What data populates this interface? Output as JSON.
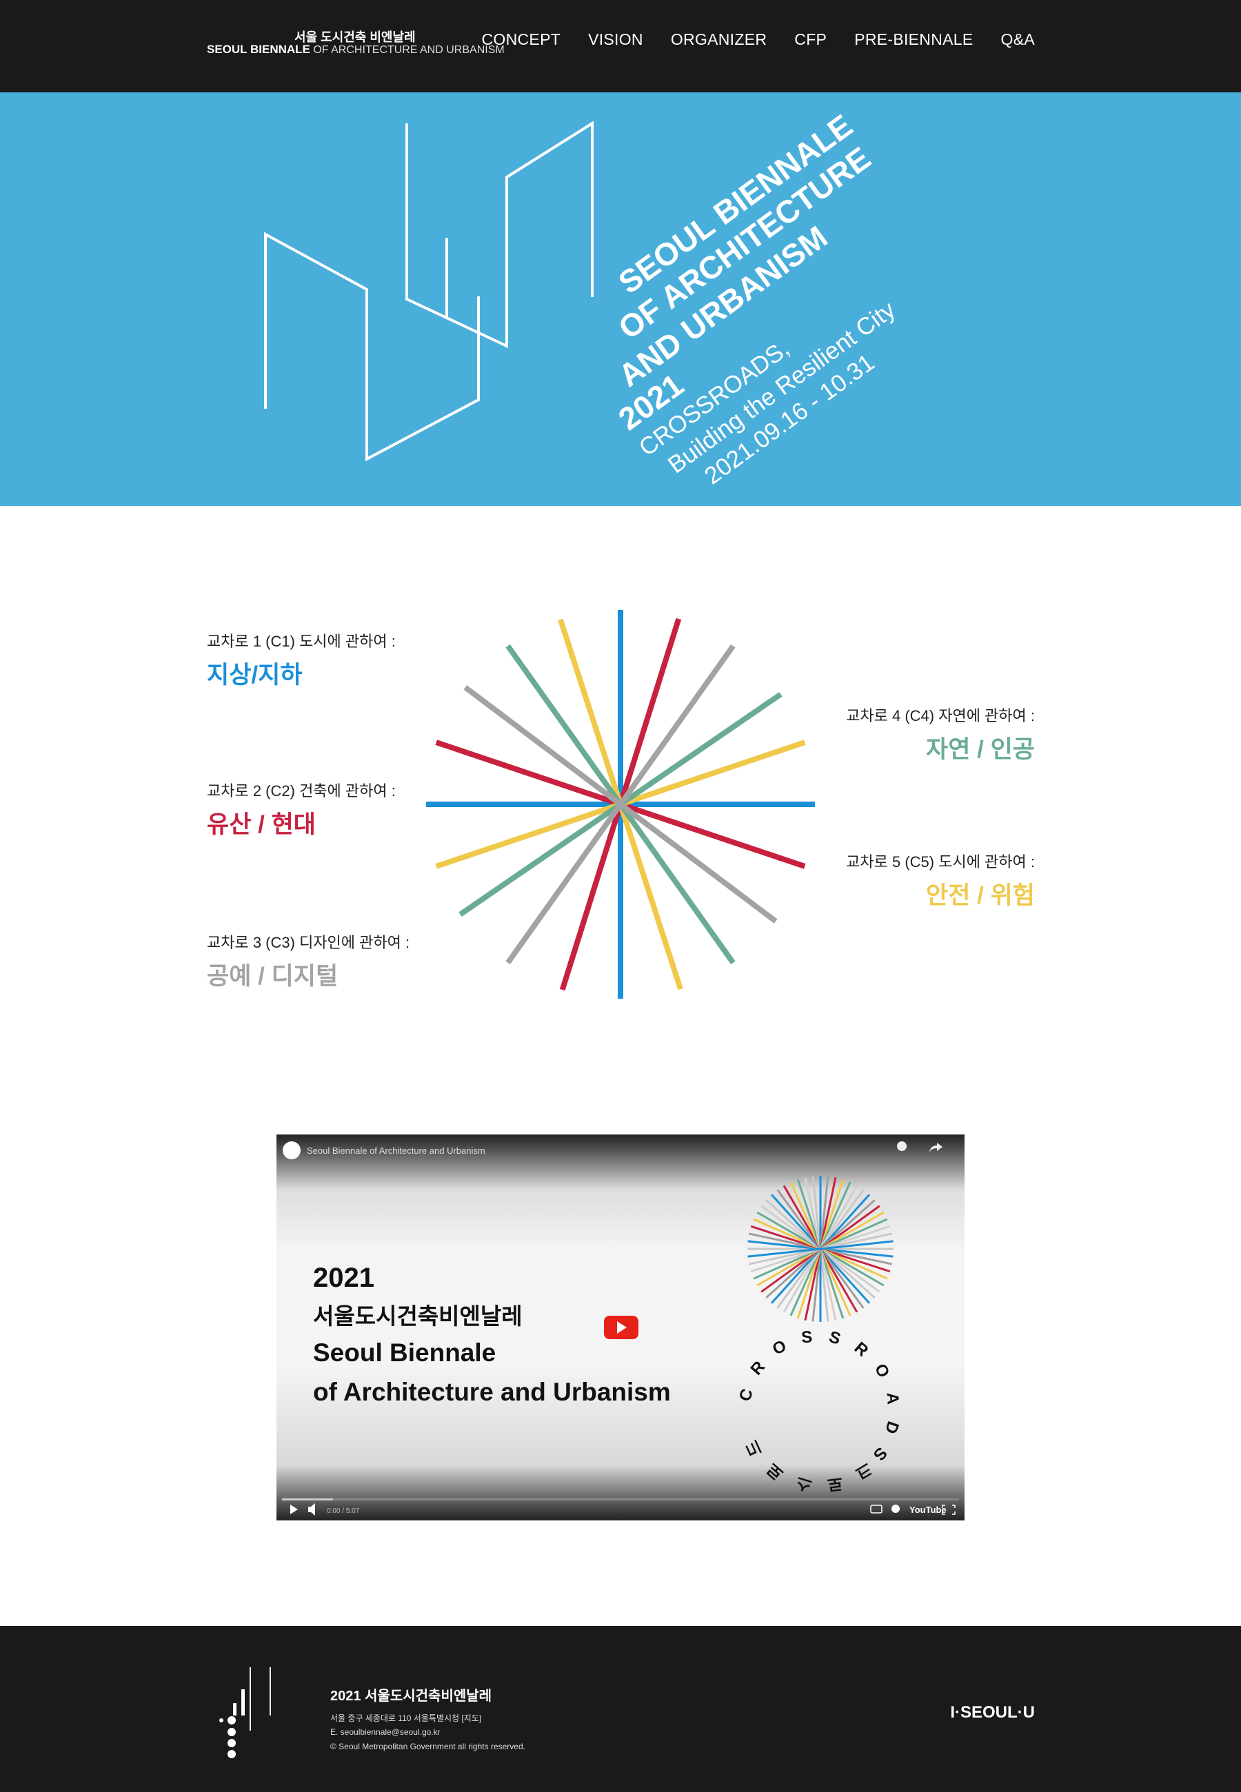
{
  "header": {
    "logo_ko": "서울 도시건축 비엔날레",
    "logo_en": "SEOUL BIENNALE",
    "logo_en_sub": "OF ARCHITECTURE AND URBANISM",
    "nav": [
      "CONCEPT",
      "VISION",
      "ORGANIZER",
      "CFP",
      "PRE-BIENNALE",
      "Q&A"
    ]
  },
  "hero": {
    "title_lines": [
      "SEOUL BIENNALE",
      "OF ARCHITECTURE",
      "AND URBANISM",
      "2021"
    ],
    "subtitle_lines": [
      "CROSSROADS,",
      "Building the Resilient City",
      "2021.09.16 - 10.31"
    ]
  },
  "crossroads": {
    "items": [
      {
        "label": "교차로 1 (C1) 도시에 관하여 :",
        "theme": "지상/지하",
        "color": "#1a8fd8"
      },
      {
        "label": "교차로 2 (C2) 건축에 관하여 :",
        "theme": "유산 / 현대",
        "color": "#c8213f"
      },
      {
        "label": "교차로 3 (C3) 디자인에 관하여 :",
        "theme": "공예 / 디지털",
        "color": "#a3a3a3"
      },
      {
        "label": "교차로 4 (C4) 자연에 관하여 :",
        "theme": "자연 / 인공",
        "color": "#6aab94"
      },
      {
        "label": "교차로 5 (C5) 도시에 관하여 :",
        "theme": "안전 / 위험",
        "color": "#f0c94b"
      }
    ]
  },
  "video": {
    "bar_title": "Seoul Biennale of Architecture and Urbanism",
    "year": "2021",
    "name_ko": "서울도시건축비엔날레",
    "name_en_1": "Seoul Biennale",
    "name_en_2": "of Architecture and Urbanism",
    "ring_en": "CROSSROADS",
    "ring_ko": "크로스로드",
    "time": "0:00 / 5:07",
    "brand": "YouTube"
  },
  "footer": {
    "title": "2021 서울도시건축비엔날레",
    "address": "서울 중구 세종대로 110 서울특별시청 [지도]",
    "email": "E. seoulbiennale@seoul.go.kr",
    "copyright": "© Seoul Metropolitan Government all rights reserved.",
    "brand": "I·SEOUL·U"
  }
}
